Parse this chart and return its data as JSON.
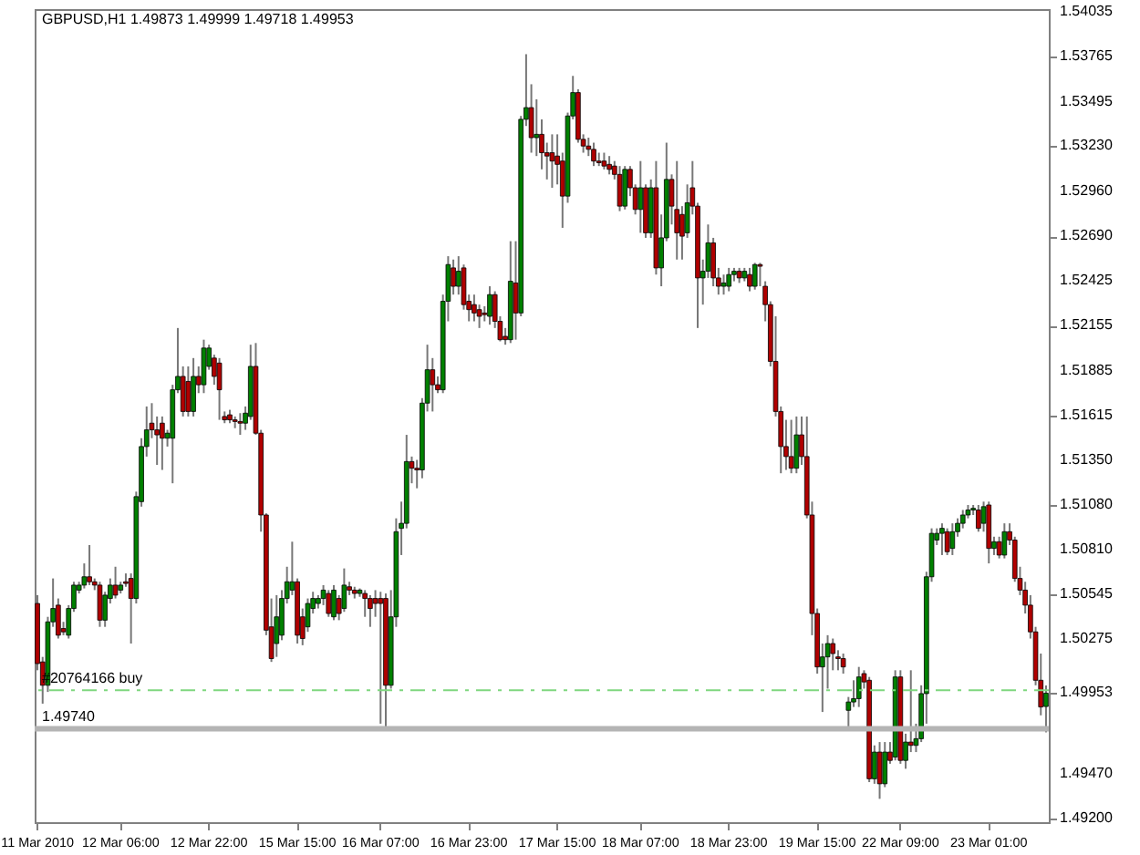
{
  "chart_data": {
    "type": "candlestick",
    "title": "GBPUSD,H1  1.49873 1.49999 1.49718 1.49953",
    "colors": [
      "#b00000",
      "#b00000",
      "#008000",
      "#008000",
      "#b00000",
      "#b00000",
      "#008000",
      "#008000",
      "#008000",
      "#008000",
      "#b00000",
      "#b00000",
      "#b00000",
      "#008000",
      "#008000",
      "#b00000",
      "#008000",
      "#b00000",
      "#b00000",
      "#008000",
      "#008000",
      "#008000",
      "#b00000",
      "#b00000",
      "#b00000",
      "#008000",
      "#008000",
      "#008000",
      "#b00000",
      "#b00000",
      "#008000",
      "#b00000",
      "#008000",
      "#008000",
      "#b00000",
      "#b00000",
      "#b00000",
      "#b00000",
      "#b00000",
      "#b00000",
      "#008000",
      "#008000",
      "#b00000",
      "#b00000",
      "#b00000",
      "#b00000",
      "#008000",
      "#008000",
      "#008000",
      "#008000",
      "#b00000",
      "#b00000",
      "#008000",
      "#008000",
      "#008000",
      "#008000",
      "#b00000",
      "#008000",
      "#b00000",
      "#008000",
      "#b00000",
      "#b00000",
      "#008000",
      "#b00000",
      "#b00000",
      "#b00000",
      "#b00000",
      "#b00000",
      "#008000",
      "#008000",
      "#008000",
      "#008000",
      "#b00000",
      "#b00000",
      "#008000",
      "#008000",
      "#b00000",
      "#b00000",
      "#008000",
      "#008000",
      "#b00000",
      "#008000",
      "#b00000",
      "#b00000",
      "#b00000",
      "#b00000",
      "#b00000",
      "#008000",
      "#b00000",
      "#b00000",
      "#b00000",
      "#008000",
      "#b00000",
      "#008000",
      "#008000",
      "#b00000",
      "#008000",
      "#b00000",
      "#b00000",
      "#b00000",
      "#b00000",
      "#b00000",
      "#008000",
      "#008000",
      "#b00000",
      "#b00000",
      "#b00000",
      "#b00000",
      "#b00000",
      "#b00000",
      "#b00000",
      "#b00000",
      "#b00000",
      "#008000",
      "#b00000",
      "#b00000",
      "#008000",
      "#b00000",
      "#008000",
      "#b00000",
      "#008000",
      "#008000",
      "#b00000",
      "#b00000",
      "#b00000",
      "#008000",
      "#b00000",
      "#b00000",
      "#008000",
      "#008000",
      "#b00000",
      "#b00000",
      "#008000",
      "#008000",
      "#008000",
      "#b00000",
      "#008000",
      "#b00000",
      "#008000",
      "#b00000",
      "#b00000",
      "#b00000",
      "#b00000",
      "#b00000",
      "#b00000",
      "#b00000",
      "#008000",
      "#b00000",
      "#b00000",
      "#b00000",
      "#b00000",
      "#008000",
      "#008000",
      "#b00000",
      "#b00000",
      "#b00000",
      "#008000",
      "#008000",
      "#008000",
      "#b00000",
      "#b00000",
      "#008000",
      "#b00000",
      "#008000",
      "#b00000",
      "#008000",
      "#b00000",
      "#008000",
      "#b00000",
      "#008000",
      "#008000",
      "#008000",
      "#008000",
      "#008000",
      "#008000",
      "#b00000",
      "#008000",
      "#008000",
      "#008000",
      "#008000",
      "#008000",
      "#b00000",
      "#008000",
      "#b00000",
      "#008000",
      "#b00000",
      "#008000",
      "#b00000",
      "#b00000",
      "#b00000",
      "#b00000",
      "#b00000",
      "#b00000",
      "#b00000",
      "#008000"
    ],
    "categories": [
      "11 Mar 2010",
      null,
      null,
      null,
      null,
      null,
      null,
      null,
      null,
      null,
      null,
      null,
      null,
      null,
      null,
      null,
      "12 Mar 06:00",
      null,
      null,
      null,
      null,
      null,
      null,
      null,
      null,
      null,
      null,
      null,
      null,
      null,
      null,
      null,
      null,
      "12 Mar 22:00",
      null,
      null,
      null,
      null,
      null,
      null,
      null,
      null,
      null,
      null,
      null,
      null,
      null,
      null,
      null,
      null,
      "15 Mar 15:00",
      null,
      null,
      null,
      null,
      null,
      null,
      null,
      null,
      null,
      null,
      null,
      null,
      null,
      null,
      null,
      "16 Mar 07:00",
      null,
      null,
      null,
      null,
      null,
      null,
      null,
      null,
      null,
      null,
      null,
      null,
      null,
      null,
      null,
      null,
      "16 Mar 23:00",
      null,
      null,
      null,
      null,
      null,
      null,
      null,
      null,
      null,
      null,
      null,
      null,
      null,
      null,
      null,
      null,
      "17 Mar 15:00",
      null,
      null,
      null,
      null,
      null,
      null,
      null,
      null,
      null,
      null,
      null,
      null,
      null,
      null,
      null,
      "18 Mar 07:00",
      null,
      null,
      null,
      null,
      null,
      null,
      null,
      null,
      null,
      null,
      null,
      null,
      null,
      null,
      null,
      null,
      "18 Mar 23:00",
      null,
      null,
      null,
      null,
      null,
      null,
      null,
      null,
      null,
      null,
      null,
      null,
      null,
      null,
      null,
      null,
      "19 Mar 15:00",
      null,
      null,
      null,
      null,
      null,
      null,
      null,
      null,
      null,
      null,
      null,
      null,
      null,
      null,
      null,
      "22 Mar 09:00",
      null,
      null,
      null,
      null,
      null,
      null,
      null,
      null,
      null,
      null,
      null,
      null,
      null,
      null,
      null,
      null,
      "23 Mar 01:00",
      null,
      null,
      null,
      null,
      null,
      null,
      null,
      null,
      null,
      null,
      null
    ],
    "ohlc": [
      [
        1.5049,
        1.5054,
        1.5009,
        1.5013
      ],
      [
        1.5014,
        1.5017,
        1.4989,
        1.5
      ],
      [
        1.5,
        1.5041,
        1.4996,
        1.5038
      ],
      [
        1.5038,
        1.5064,
        1.5035,
        1.5046
      ],
      [
        1.5048,
        1.5052,
        1.5028,
        1.503
      ],
      [
        1.5034,
        1.5038,
        1.503,
        1.5032
      ],
      [
        1.503,
        1.5048,
        1.5028,
        1.5046
      ],
      [
        1.5046,
        1.5062,
        1.5044,
        1.506
      ],
      [
        1.5057,
        1.5062,
        1.5055,
        1.506
      ],
      [
        1.506,
        1.5073,
        1.5058,
        1.5065
      ],
      [
        1.5065,
        1.5084,
        1.506,
        1.5062
      ],
      [
        1.5062,
        1.5064,
        1.5057,
        1.506
      ],
      [
        1.506,
        1.5062,
        1.5035,
        1.5039
      ],
      [
        1.5039,
        1.5056,
        1.5035,
        1.5054
      ],
      [
        1.5052,
        1.5064,
        1.5049,
        1.506
      ],
      [
        1.506,
        1.5071,
        1.5052,
        1.5054
      ],
      [
        1.5057,
        1.5062,
        1.5055,
        1.506
      ],
      [
        1.5062,
        1.5067,
        1.5059,
        1.5061
      ],
      [
        1.5064,
        1.5067,
        1.5025,
        1.5052
      ],
      [
        1.5052,
        1.5116,
        1.5049,
        1.5113
      ],
      [
        1.511,
        1.5148,
        1.5107,
        1.5143
      ],
      [
        1.5143,
        1.5167,
        1.5137,
        1.5153
      ],
      [
        1.5157,
        1.5169,
        1.5148,
        1.5153
      ],
      [
        1.5153,
        1.5161,
        1.5132,
        1.515
      ],
      [
        1.5157,
        1.5161,
        1.5129,
        1.5148
      ],
      [
        1.5148,
        1.5153,
        1.5143,
        1.5151
      ],
      [
        1.5148,
        1.518,
        1.5121,
        1.5177
      ],
      [
        1.5177,
        1.5214,
        1.5175,
        1.5185
      ],
      [
        1.5185,
        1.5191,
        1.5161,
        1.5164
      ],
      [
        1.5182,
        1.5191,
        1.5161,
        1.5164
      ],
      [
        1.5164,
        1.5196,
        1.5161,
        1.5185
      ],
      [
        1.5185,
        1.5191,
        1.5175,
        1.518
      ],
      [
        1.518,
        1.5207,
        1.5175,
        1.5202
      ],
      [
        1.5191,
        1.5204,
        1.5189,
        1.5202
      ],
      [
        1.5196,
        1.5198,
        1.518,
        1.5185
      ],
      [
        1.5193,
        1.5196,
        1.5159,
        1.5177
      ],
      [
        1.5161,
        1.5164,
        1.5157,
        1.5159
      ],
      [
        1.5162,
        1.5165,
        1.5157,
        1.5159
      ],
      [
        1.5159,
        1.5161,
        1.5154,
        1.5158
      ],
      [
        1.5158,
        1.5163,
        1.515,
        1.5157
      ],
      [
        1.5157,
        1.5167,
        1.5153,
        1.5163
      ],
      [
        1.5161,
        1.5204,
        1.5159,
        1.5191
      ],
      [
        1.5191,
        1.5205,
        1.515,
        1.5151
      ],
      [
        1.5151,
        1.5153,
        1.5092,
        1.5102
      ],
      [
        1.5102,
        1.5103,
        1.503,
        1.5033
      ],
      [
        1.5035,
        1.5052,
        1.5014,
        1.5016
      ],
      [
        1.5025,
        1.5054,
        1.5017,
        1.5041
      ],
      [
        1.503,
        1.5057,
        1.5027,
        1.5052
      ],
      [
        1.5052,
        1.5071,
        1.5049,
        1.5062
      ],
      [
        1.5057,
        1.5086,
        1.5054,
        1.5062
      ],
      [
        1.5062,
        1.5064,
        1.5025,
        1.503
      ],
      [
        1.5041,
        1.5046,
        1.5024,
        1.5028
      ],
      [
        1.5035,
        1.5052,
        1.5032,
        1.5049
      ],
      [
        1.5046,
        1.5056,
        1.5043,
        1.5052
      ],
      [
        1.5049,
        1.5054,
        1.5046,
        1.5052
      ],
      [
        1.5052,
        1.506,
        1.5048,
        1.5057
      ],
      [
        1.5055,
        1.5057,
        1.5041,
        1.5043
      ],
      [
        1.5041,
        1.506,
        1.5039,
        1.5057
      ],
      [
        1.5052,
        1.5054,
        1.5039,
        1.5043
      ],
      [
        1.5046,
        1.507,
        1.5044,
        1.506
      ],
      [
        1.5059,
        1.5062,
        1.5054,
        1.5057
      ],
      [
        1.5057,
        1.5059,
        1.5052,
        1.5055
      ],
      [
        1.5055,
        1.5058,
        1.5053,
        1.5057
      ],
      [
        1.5055,
        1.5057,
        1.5041,
        1.5052
      ],
      [
        1.5052,
        1.5054,
        1.5035,
        1.5046
      ],
      [
        1.5052,
        1.5057,
        1.5041,
        1.5049
      ],
      [
        1.5052,
        1.5056,
        1.4977,
        1.5049
      ],
      [
        1.5052,
        1.5055,
        1.4973,
        1.5
      ],
      [
        1.5,
        1.5057,
        1.4998,
        1.5041
      ],
      [
        1.5041,
        1.51,
        1.5035,
        1.5092
      ],
      [
        1.5094,
        1.511,
        1.5078,
        1.5097
      ],
      [
        1.5097,
        1.515,
        1.5094,
        1.5134
      ],
      [
        1.5134,
        1.5137,
        1.5121,
        1.513
      ],
      [
        1.513,
        1.5135,
        1.5118,
        1.5129
      ],
      [
        1.5129,
        1.5172,
        1.5124,
        1.5169
      ],
      [
        1.5169,
        1.5204,
        1.5164,
        1.5189
      ],
      [
        1.5189,
        1.5196,
        1.5164,
        1.518
      ],
      [
        1.518,
        1.5185,
        1.5175,
        1.5177
      ],
      [
        1.5177,
        1.5234,
        1.5175,
        1.523
      ],
      [
        1.523,
        1.5257,
        1.5218,
        1.5252
      ],
      [
        1.525,
        1.5255,
        1.5234,
        1.5239
      ],
      [
        1.5239,
        1.5257,
        1.5234,
        1.5248
      ],
      [
        1.525,
        1.5252,
        1.5225,
        1.5228
      ],
      [
        1.523,
        1.5234,
        1.5218,
        1.5225
      ],
      [
        1.5228,
        1.5234,
        1.5218,
        1.5223
      ],
      [
        1.5225,
        1.5228,
        1.5214,
        1.5221
      ],
      [
        1.5223,
        1.5227,
        1.5218,
        1.5222
      ],
      [
        1.5221,
        1.5239,
        1.5216,
        1.5234
      ],
      [
        1.5234,
        1.5236,
        1.5214,
        1.5218
      ],
      [
        1.5218,
        1.5221,
        1.5206,
        1.5207
      ],
      [
        1.5209,
        1.5214,
        1.5204,
        1.5207
      ],
      [
        1.5207,
        1.5266,
        1.5205,
        1.5242
      ],
      [
        1.5241,
        1.5266,
        1.5207,
        1.5223
      ],
      [
        1.5223,
        1.5341,
        1.5221,
        1.5339
      ],
      [
        1.5339,
        1.5378,
        1.5335,
        1.5346
      ],
      [
        1.5346,
        1.536,
        1.5319,
        1.5328
      ],
      [
        1.5328,
        1.5351,
        1.5317,
        1.533
      ],
      [
        1.533,
        1.5339,
        1.5309,
        1.5319
      ],
      [
        1.5319,
        1.5325,
        1.5303,
        1.5317
      ],
      [
        1.5319,
        1.533,
        1.5298,
        1.5314
      ],
      [
        1.5317,
        1.533,
        1.53,
        1.5312
      ],
      [
        1.5314,
        1.5319,
        1.5274,
        1.5293
      ],
      [
        1.5293,
        1.5343,
        1.5289,
        1.5341
      ],
      [
        1.5341,
        1.5365,
        1.5339,
        1.5355
      ],
      [
        1.5355,
        1.5357,
        1.5325,
        1.5327
      ],
      [
        1.5327,
        1.533,
        1.5319,
        1.5323
      ],
      [
        1.5323,
        1.5328,
        1.5317,
        1.5321
      ],
      [
        1.5321,
        1.5325,
        1.5311,
        1.5314
      ],
      [
        1.5314,
        1.5319,
        1.5311,
        1.5313
      ],
      [
        1.5314,
        1.5319,
        1.5309,
        1.5311
      ],
      [
        1.5312,
        1.5317,
        1.5306,
        1.5309
      ],
      [
        1.5311,
        1.5314,
        1.5303,
        1.5306
      ],
      [
        1.5306,
        1.5311,
        1.5284,
        1.5287
      ],
      [
        1.5287,
        1.5311,
        1.5285,
        1.5309
      ],
      [
        1.5309,
        1.5311,
        1.5293,
        1.5298
      ],
      [
        1.5298,
        1.53,
        1.5282,
        1.5285
      ],
      [
        1.5285,
        1.5314,
        1.5271,
        1.5298
      ],
      [
        1.5298,
        1.53,
        1.5268,
        1.5271
      ],
      [
        1.5271,
        1.5303,
        1.5268,
        1.5298
      ],
      [
        1.5298,
        1.5314,
        1.5246,
        1.525
      ],
      [
        1.525,
        1.5282,
        1.5239,
        1.5268
      ],
      [
        1.5268,
        1.5325,
        1.5266,
        1.5303
      ],
      [
        1.5303,
        1.5306,
        1.5276,
        1.5287
      ],
      [
        1.5285,
        1.5314,
        1.5255,
        1.5271
      ],
      [
        1.5282,
        1.5287,
        1.5255,
        1.5269
      ],
      [
        1.5271,
        1.53,
        1.5268,
        1.5289
      ],
      [
        1.5298,
        1.5314,
        1.5282,
        1.5287
      ],
      [
        1.5287,
        1.5289,
        1.5214,
        1.5244
      ],
      [
        1.5244,
        1.5255,
        1.5228,
        1.5248
      ],
      [
        1.5248,
        1.5276,
        1.5244,
        1.5265
      ],
      [
        1.5265,
        1.5268,
        1.5239,
        1.5244
      ],
      [
        1.5244,
        1.525,
        1.5234,
        1.5239
      ],
      [
        1.5239,
        1.5246,
        1.5234,
        1.5241
      ],
      [
        1.5239,
        1.525,
        1.5236,
        1.5246
      ],
      [
        1.5246,
        1.525,
        1.5242,
        1.5248
      ],
      [
        1.5248,
        1.525,
        1.5241,
        1.5244
      ],
      [
        1.5244,
        1.525,
        1.5242,
        1.5248
      ],
      [
        1.5246,
        1.525,
        1.5236,
        1.5239
      ],
      [
        1.5239,
        1.5253,
        1.5237,
        1.5252
      ],
      [
        1.5252,
        1.5253,
        1.5239,
        1.5251
      ],
      [
        1.5239,
        1.5242,
        1.5218,
        1.5228
      ],
      [
        1.5228,
        1.523,
        1.5191,
        1.5194
      ],
      [
        1.5194,
        1.5221,
        1.5161,
        1.5164
      ],
      [
        1.5164,
        1.5167,
        1.5127,
        1.5143
      ],
      [
        1.5143,
        1.5159,
        1.5129,
        1.5137
      ],
      [
        1.5137,
        1.5159,
        1.5127,
        1.513
      ],
      [
        1.513,
        1.5161,
        1.5127,
        1.515
      ],
      [
        1.515,
        1.5161,
        1.5132,
        1.5137
      ],
      [
        1.5137,
        1.5161,
        1.51,
        1.5102
      ],
      [
        1.5102,
        1.511,
        1.503,
        1.5043
      ],
      [
        1.5043,
        1.5046,
        1.5007,
        1.5011
      ],
      [
        1.5011,
        1.5025,
        1.4984,
        1.5017
      ],
      [
        1.5017,
        1.503,
        1.4998,
        1.5025
      ],
      [
        1.5025,
        1.5028,
        1.5009,
        1.5019
      ],
      [
        1.5017,
        1.5021,
        1.5009,
        1.5016
      ],
      [
        1.5016,
        1.5019,
        1.5007,
        1.5011
      ],
      [
        1.4985,
        1.4993,
        1.4974,
        1.499
      ],
      [
        1.499,
        1.5003,
        1.4987,
        1.4992
      ],
      [
        1.4992,
        1.5011,
        1.4987,
        1.5005
      ],
      [
        1.5007,
        1.5009,
        1.4998,
        1.5002
      ],
      [
        1.5003,
        1.5005,
        1.4942,
        1.4944
      ],
      [
        1.4944,
        1.4964,
        1.4941,
        1.496
      ],
      [
        1.496,
        1.4966,
        1.4932,
        1.4941
      ],
      [
        1.4941,
        1.4966,
        1.4939,
        1.496
      ],
      [
        1.496,
        1.4966,
        1.4953,
        1.4955
      ],
      [
        1.4957,
        1.5009,
        1.4955,
        1.5005
      ],
      [
        1.5005,
        1.5009,
        1.4953,
        1.4955
      ],
      [
        1.4955,
        1.4971,
        1.495,
        1.4966
      ],
      [
        1.4966,
        1.5009,
        1.496,
        1.4964
      ],
      [
        1.4964,
        1.4977,
        1.496,
        1.4968
      ],
      [
        1.4968,
        1.5,
        1.4966,
        1.4995
      ],
      [
        1.4995,
        1.5068,
        1.4977,
        1.5065
      ],
      [
        1.5065,
        1.5094,
        1.5062,
        1.5091
      ],
      [
        1.5087,
        1.5094,
        1.5084,
        1.5091
      ],
      [
        1.5091,
        1.5097,
        1.5078,
        1.5094
      ],
      [
        1.5092,
        1.5094,
        1.5078,
        1.508
      ],
      [
        1.5082,
        1.5097,
        1.5078,
        1.5092
      ],
      [
        1.5092,
        1.51,
        1.5089,
        1.5097
      ],
      [
        1.5097,
        1.5105,
        1.5094,
        1.5102
      ],
      [
        1.5102,
        1.5108,
        1.51,
        1.5105
      ],
      [
        1.5105,
        1.5108,
        1.5102,
        1.5106
      ],
      [
        1.5105,
        1.5108,
        1.5092,
        1.5094
      ],
      [
        1.5097,
        1.511,
        1.5092,
        1.5107
      ],
      [
        1.5108,
        1.511,
        1.5073,
        1.5082
      ],
      [
        1.5082,
        1.5089,
        1.5078,
        1.5086
      ],
      [
        1.5086,
        1.5089,
        1.5076,
        1.5078
      ],
      [
        1.5078,
        1.5097,
        1.5076,
        1.5092
      ],
      [
        1.5092,
        1.5097,
        1.5084,
        1.5087
      ],
      [
        1.5087,
        1.5089,
        1.5062,
        1.5064
      ],
      [
        1.5064,
        1.5071,
        1.5054,
        1.5057
      ],
      [
        1.5057,
        1.5062,
        1.5043,
        1.5048
      ],
      [
        1.5048,
        1.5054,
        1.5028,
        1.5032
      ],
      [
        1.5032,
        1.5035,
        1.5,
        1.5003
      ],
      [
        1.5003,
        1.5019,
        1.4982,
        1.4987
      ],
      [
        1.49873,
        1.49999,
        1.49718,
        1.49953
      ]
    ],
    "ylim": [
      1.4918,
      1.5405
    ],
    "yticks": [
      {
        "value": 1.54035,
        "label": "1.54035"
      },
      {
        "value": 1.53765,
        "label": "1.53765"
      },
      {
        "value": 1.53495,
        "label": "1.53495"
      },
      {
        "value": 1.5323,
        "label": "1.53230"
      },
      {
        "value": 1.5296,
        "label": "1.52960"
      },
      {
        "value": 1.5269,
        "label": "1.52690"
      },
      {
        "value": 1.52425,
        "label": "1.52425"
      },
      {
        "value": 1.52155,
        "label": "1.52155"
      },
      {
        "value": 1.51885,
        "label": "1.51885"
      },
      {
        "value": 1.51615,
        "label": "1.51615"
      },
      {
        "value": 1.5135,
        "label": "1.51350"
      },
      {
        "value": 1.5108,
        "label": "1.51080"
      },
      {
        "value": 1.5081,
        "label": "1.50810"
      },
      {
        "value": 1.50545,
        "label": "1.50545"
      },
      {
        "value": 1.50275,
        "label": "1.50275"
      },
      {
        "value": 1.49953,
        "label": "1.49953"
      },
      {
        "value": 1.4947,
        "label": "1.49470"
      },
      {
        "value": 1.492,
        "label": "1.49200"
      }
    ],
    "ref_lines": [
      {
        "axis": "y",
        "value": 1.4997,
        "label": "#20764166 buy",
        "color": "#7fd77f",
        "line_style": "dashed"
      },
      {
        "axis": "y",
        "value": 1.4974,
        "label": "1.49740",
        "color": "#b4b4b4",
        "line_style": "solid"
      }
    ]
  }
}
